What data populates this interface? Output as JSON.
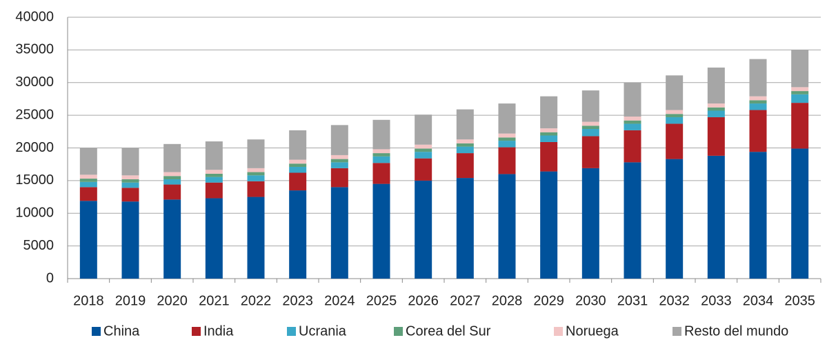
{
  "chart_data": {
    "type": "stacked_bar",
    "categories": [
      "2018",
      "2019",
      "2020",
      "2021",
      "2022",
      "2023",
      "2024",
      "2025",
      "2026",
      "2027",
      "2028",
      "2029",
      "2030",
      "2031",
      "2032",
      "2033",
      "2034",
      "2035"
    ],
    "series": [
      {
        "name": "China",
        "color": "#00529b",
        "values": [
          11900,
          11800,
          12100,
          12300,
          12500,
          13500,
          14000,
          14500,
          15000,
          15400,
          16000,
          16400,
          16900,
          17800,
          18300,
          18800,
          19400,
          19900
        ]
      },
      {
        "name": "India",
        "color": "#b02025",
        "values": [
          2100,
          2100,
          2300,
          2400,
          2400,
          2700,
          2900,
          3200,
          3400,
          3800,
          4100,
          4500,
          4900,
          4900,
          5400,
          5900,
          6400,
          7000
        ]
      },
      {
        "name": "Ucrania",
        "color": "#3aa8c8",
        "values": [
          800,
          800,
          800,
          850,
          900,
          900,
          900,
          1000,
          1000,
          1000,
          1000,
          1000,
          1100,
          1000,
          1000,
          1000,
          1000,
          1300
        ]
      },
      {
        "name": "Corea del Sur",
        "color": "#5e9f7a",
        "values": [
          500,
          500,
          500,
          500,
          500,
          500,
          500,
          500,
          500,
          500,
          500,
          500,
          500,
          500,
          500,
          500,
          500,
          500
        ]
      },
      {
        "name": "Noruega",
        "color": "#f2c4c4",
        "values": [
          600,
          600,
          600,
          600,
          600,
          600,
          600,
          600,
          600,
          600,
          600,
          600,
          600,
          600,
          600,
          600,
          600,
          600
        ]
      },
      {
        "name": "Resto del mundo",
        "color": "#a6a6a6",
        "values": [
          4100,
          4200,
          4300,
          4350,
          4400,
          4500,
          4600,
          4500,
          4600,
          4600,
          4600,
          4900,
          4800,
          5200,
          5300,
          5500,
          5700,
          5700
        ]
      }
    ],
    "ylim": [
      0,
      40000
    ],
    "yticks": [
      0,
      5000,
      10000,
      15000,
      20000,
      25000,
      30000,
      35000,
      40000
    ],
    "grid": true,
    "legend": "bottom"
  }
}
